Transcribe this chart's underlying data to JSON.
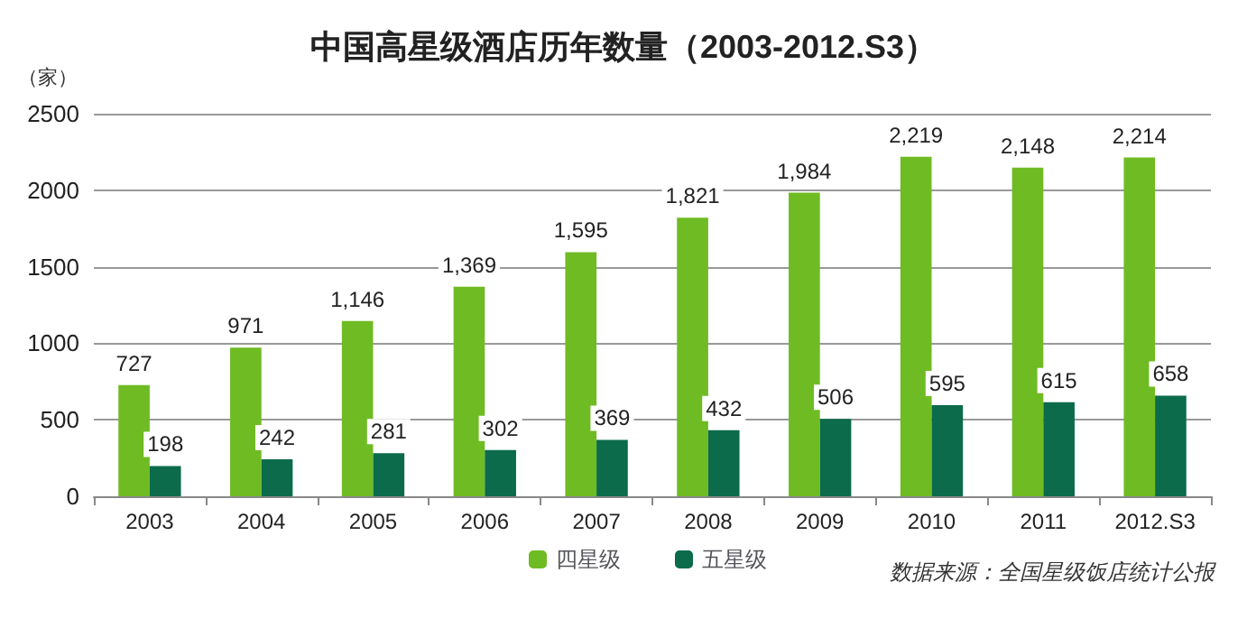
{
  "chart_data": {
    "type": "bar",
    "title": "中国高星级酒店历年数量（2003-2012.S3）",
    "ylabel": "（家）",
    "categories": [
      "2003",
      "2004",
      "2005",
      "2006",
      "2007",
      "2008",
      "2009",
      "2010",
      "2011",
      "2012.S3"
    ],
    "series": [
      {
        "name": "四星级",
        "color": "#6fbb23",
        "values": [
          727,
          971,
          1146,
          1369,
          1595,
          1821,
          1984,
          2219,
          2148,
          2214
        ],
        "value_labels": [
          "727",
          "971",
          "1,146",
          "1,369",
          "1,595",
          "1,821",
          "1,984",
          "2,219",
          "2,148",
          "2,214"
        ]
      },
      {
        "name": "五星级",
        "color": "#0b6b4b",
        "values": [
          198,
          242,
          281,
          302,
          369,
          432,
          506,
          595,
          615,
          658
        ],
        "value_labels": [
          "198",
          "242",
          "281",
          "302",
          "369",
          "432",
          "506",
          "595",
          "615",
          "658"
        ]
      }
    ],
    "ylim": [
      0,
      2500
    ],
    "yticks": [
      0,
      500,
      1000,
      1500,
      2000,
      2500
    ],
    "grid": "y",
    "legend": "bottom",
    "annotations": [
      "数据来源：全国星级饭店统计公报"
    ]
  }
}
